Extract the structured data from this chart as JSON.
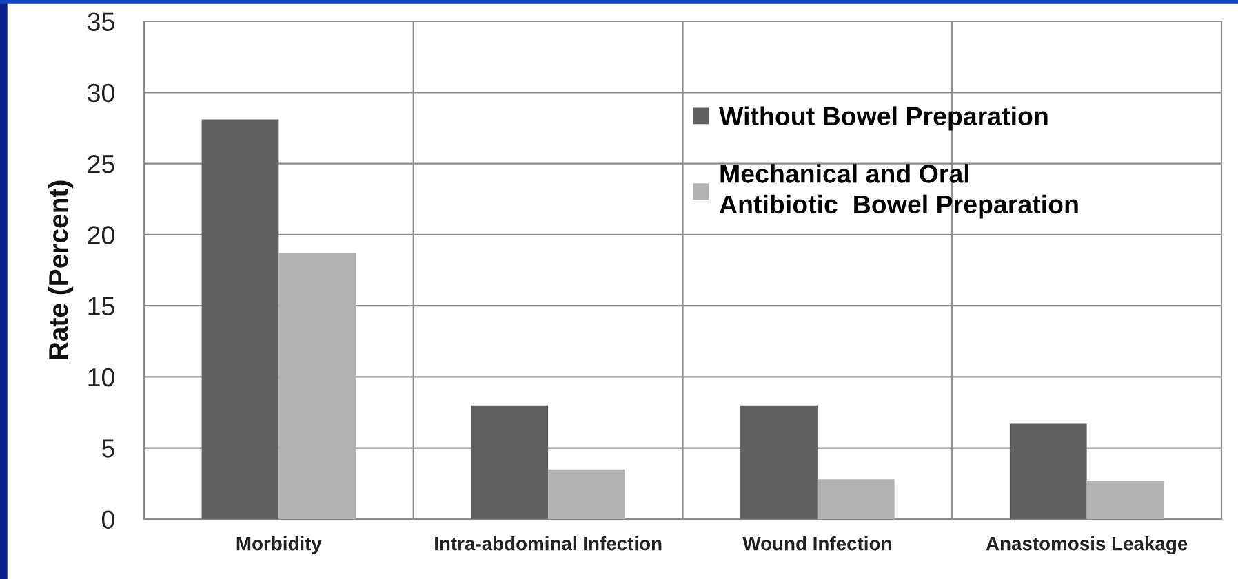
{
  "chart_data": {
    "type": "bar",
    "ylabel": "Rate (Percent)",
    "categories": [
      "Morbidity",
      "Intra-abdominal Infection",
      "Wound Infection",
      "Anastomosis Leakage"
    ],
    "series": [
      {
        "name": "Without Bowel Preparation",
        "color": "#606060",
        "values": [
          28.1,
          8.0,
          8.0,
          6.7
        ]
      },
      {
        "name": "Mechanical and Oral\nAntibiotic  Bowel Preparation",
        "color": "#b2b2b2",
        "values": [
          18.7,
          3.5,
          2.8,
          2.7
        ]
      }
    ],
    "ylim": [
      0,
      35
    ],
    "yticks": [
      0,
      5,
      10,
      15,
      20,
      25,
      30,
      35
    ],
    "grid": true,
    "legend": "top right"
  }
}
